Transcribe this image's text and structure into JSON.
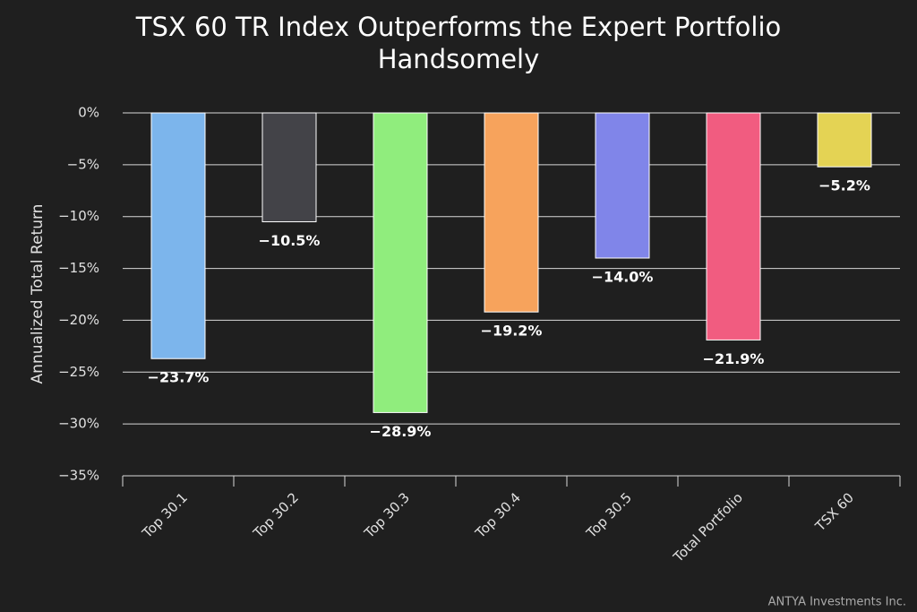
{
  "chart_data": {
    "type": "bar",
    "title": "TSX 60 TR Index Outperforms the Expert Portfolio Handsomely",
    "y_axis_label": "Annualized Total Return",
    "credit": "ANTYA Investments Inc.",
    "categories": [
      "Top 30.1",
      "Top 30.2",
      "Top 30.3",
      "Top 30.4",
      "Top 30.5",
      "Total Portfolio",
      "TSX 60"
    ],
    "values": [
      -23.7,
      -10.5,
      -28.9,
      -19.2,
      -14.0,
      -21.9,
      -5.2
    ],
    "value_labels": [
      "−23.7%",
      "−10.5%",
      "−28.9%",
      "−19.2%",
      "−14.0%",
      "−21.9%",
      "−5.2%"
    ],
    "colors": [
      "#7cb5ec",
      "#434348",
      "#90ed7d",
      "#f7a35c",
      "#8085e9",
      "#f15c80",
      "#e4d354"
    ],
    "ylim": [
      -35,
      0
    ],
    "yticks": [
      {
        "value": 0,
        "label": "0%"
      },
      {
        "value": -5,
        "label": "−5%"
      },
      {
        "value": -10,
        "label": "−10%"
      },
      {
        "value": -15,
        "label": "−15%"
      },
      {
        "value": -20,
        "label": "−20%"
      },
      {
        "value": -25,
        "label": "−25%"
      },
      {
        "value": -30,
        "label": "−30%"
      },
      {
        "value": -35,
        "label": "−35%"
      }
    ],
    "grid": true
  }
}
